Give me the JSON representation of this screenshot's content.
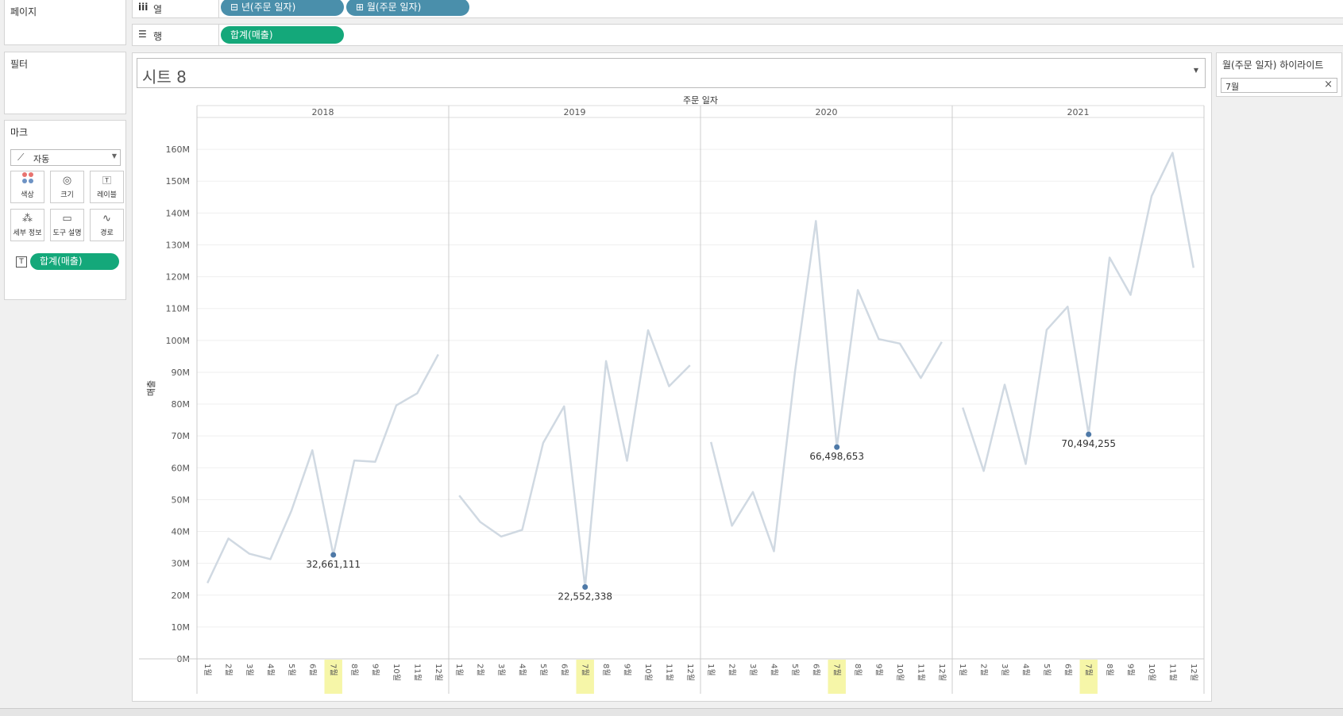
{
  "left_panels": {
    "pages_title": "페이지",
    "filters_title": "필터",
    "marks_title": "마크",
    "mark_type": "자동",
    "mark_buttons": [
      "색상",
      "크기",
      "레이블",
      "세부 정보",
      "도구 설명",
      "경로"
    ],
    "mark_pill": "합계(매출)"
  },
  "shelves": {
    "columns_label": "열",
    "columns_pills": [
      "⊟ 년(주문 일자)",
      "⊞ 월(주문 일자)"
    ],
    "rows_label": "행",
    "rows_pill": "합계(매출)"
  },
  "sheet": {
    "title": "시트 8"
  },
  "highlighter": {
    "title": "월(주문 일자) 하이라이트",
    "value": "7월",
    "clear": "×"
  },
  "chart_data": {
    "type": "line",
    "title": "",
    "column_header": "주문 일자",
    "ylabel": "매출",
    "ylim": [
      0,
      170000000
    ],
    "yticks": [
      0,
      10000000,
      20000000,
      30000000,
      40000000,
      50000000,
      60000000,
      70000000,
      80000000,
      90000000,
      100000000,
      110000000,
      120000000,
      130000000,
      140000000,
      150000000,
      160000000
    ],
    "ytick_labels": [
      "0M",
      "10M",
      "20M",
      "30M",
      "40M",
      "50M",
      "60M",
      "70M",
      "80M",
      "90M",
      "100M",
      "110M",
      "120M",
      "130M",
      "140M",
      "150M",
      "160M"
    ],
    "month_labels": [
      "1월",
      "2월",
      "3월",
      "4월",
      "5월",
      "6월",
      "7월",
      "8월",
      "9월",
      "10월",
      "11월",
      "12월"
    ],
    "highlight_month_index": 6,
    "line_color": "#d0d9e2",
    "highlight_color": "#4e79a7",
    "highlight_band_color": "#f6f6a8",
    "grid": true,
    "panels": [
      {
        "year": "2018",
        "values": [
          23800000,
          37800000,
          33000000,
          31300000,
          46500000,
          65500000,
          32661111,
          62300000,
          61900000,
          79600000,
          83400000,
          95600000
        ],
        "label": "32,661,111"
      },
      {
        "year": "2019",
        "values": [
          51300000,
          43000000,
          38400000,
          40500000,
          67800000,
          79300000,
          22552338,
          93500000,
          62200000,
          103200000,
          85600000,
          92200000
        ],
        "label": "22,552,338"
      },
      {
        "year": "2020",
        "values": [
          68100000,
          41800000,
          52400000,
          33800000,
          90000000,
          137500000,
          66498653,
          115800000,
          100400000,
          99000000,
          88200000,
          99500000
        ],
        "label": "66,498,653"
      },
      {
        "year": "2021",
        "values": [
          78900000,
          59000000,
          86100000,
          61200000,
          103300000,
          110600000,
          70494255,
          126000000,
          114300000,
          145300000,
          158900000,
          122800000
        ],
        "label": "70,494,255"
      }
    ]
  }
}
